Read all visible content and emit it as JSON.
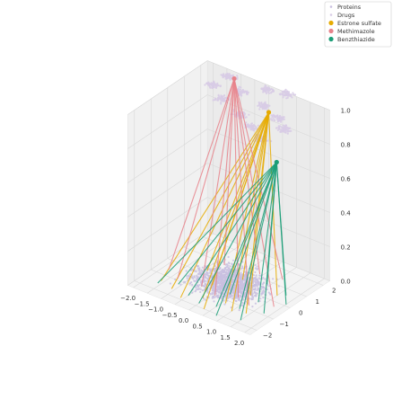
{
  "chart_data": {
    "type": "scatter",
    "projection": "3d",
    "grid": true,
    "legend_position": "top-right",
    "legend": [
      {
        "label": "Proteins",
        "color": "#c9bfe0",
        "marker": "dot"
      },
      {
        "label": "Drugs",
        "color": "#d8cce6",
        "marker": "dot"
      },
      {
        "label": "Estrone sulfate",
        "color": "#e6ab02",
        "marker": "circle"
      },
      {
        "label": "Methimazole",
        "color": "#e7838b",
        "marker": "circle"
      },
      {
        "label": "Benzthiazide",
        "color": "#1b9e77",
        "marker": "circle"
      }
    ],
    "xaxis": {
      "range": [
        -2.2,
        2.2
      ],
      "ticks": [
        "−2.0",
        "−1.5",
        "−1.0",
        "−0.5",
        "0.0",
        "0.5",
        "1.0",
        "1.5",
        "2.0"
      ]
    },
    "yaxis": {
      "range": [
        -2.4,
        2.4
      ],
      "ticks": [
        "−2",
        "−1",
        "0",
        "1",
        "2"
      ]
    },
    "zaxis": {
      "range": [
        0.0,
        1.0
      ],
      "ticks": [
        "0.0",
        "0.2",
        "0.4",
        "0.6",
        "0.8",
        "1.0"
      ]
    },
    "protein_layer_z": 0.0,
    "drug_layer_z": 1.0,
    "drugs_highlighted": [
      {
        "name": "Estrone sulfate",
        "position": [
          0.9,
          0.9,
          1.0
        ],
        "color": "#e6ab02",
        "links": [
          [
            -1.6,
            -1.4
          ],
          [
            -1.1,
            -1.6
          ],
          [
            -0.6,
            -1.9
          ],
          [
            -0.1,
            -1.4
          ],
          [
            0.3,
            -2.0
          ],
          [
            0.6,
            -1.2
          ],
          [
            1.0,
            -1.5
          ],
          [
            1.4,
            -1.3
          ],
          [
            -0.9,
            0.2
          ],
          [
            0.2,
            0.5
          ],
          [
            0.9,
            -0.2
          ],
          [
            1.5,
            0.4
          ],
          [
            -0.3,
            -0.5
          ]
        ]
      },
      {
        "name": "Methimazole",
        "position": [
          -1.0,
          2.0,
          1.0
        ],
        "color": "#e7838b",
        "links": [
          [
            -1.8,
            -0.6
          ],
          [
            -1.3,
            -0.9
          ],
          [
            -0.5,
            -0.8
          ],
          [
            -0.7,
            0.9
          ],
          [
            0.1,
            -1.0
          ],
          [
            0.7,
            -0.6
          ],
          [
            1.2,
            -0.8
          ],
          [
            1.8,
            -0.3
          ],
          [
            0.4,
            1.2
          ],
          [
            1.1,
            1.4
          ]
        ]
      },
      {
        "name": "Benzthiazide",
        "position": [
          1.6,
          0.2,
          0.8
        ],
        "color": "#1b9e77",
        "links": [
          [
            -1.6,
            -1.6
          ],
          [
            -1.1,
            -1.2
          ],
          [
            -0.5,
            -1.6
          ],
          [
            0.0,
            -1.8
          ],
          [
            0.5,
            -1.6
          ],
          [
            0.8,
            -2.1
          ],
          [
            1.1,
            -1.2
          ],
          [
            1.5,
            -1.8
          ],
          [
            1.8,
            -0.9
          ],
          [
            1.3,
            -0.4
          ],
          [
            0.4,
            -0.6
          ],
          [
            1.7,
            0.6
          ],
          [
            2.0,
            0.1
          ],
          [
            0.9,
            0.8
          ]
        ]
      }
    ]
  }
}
